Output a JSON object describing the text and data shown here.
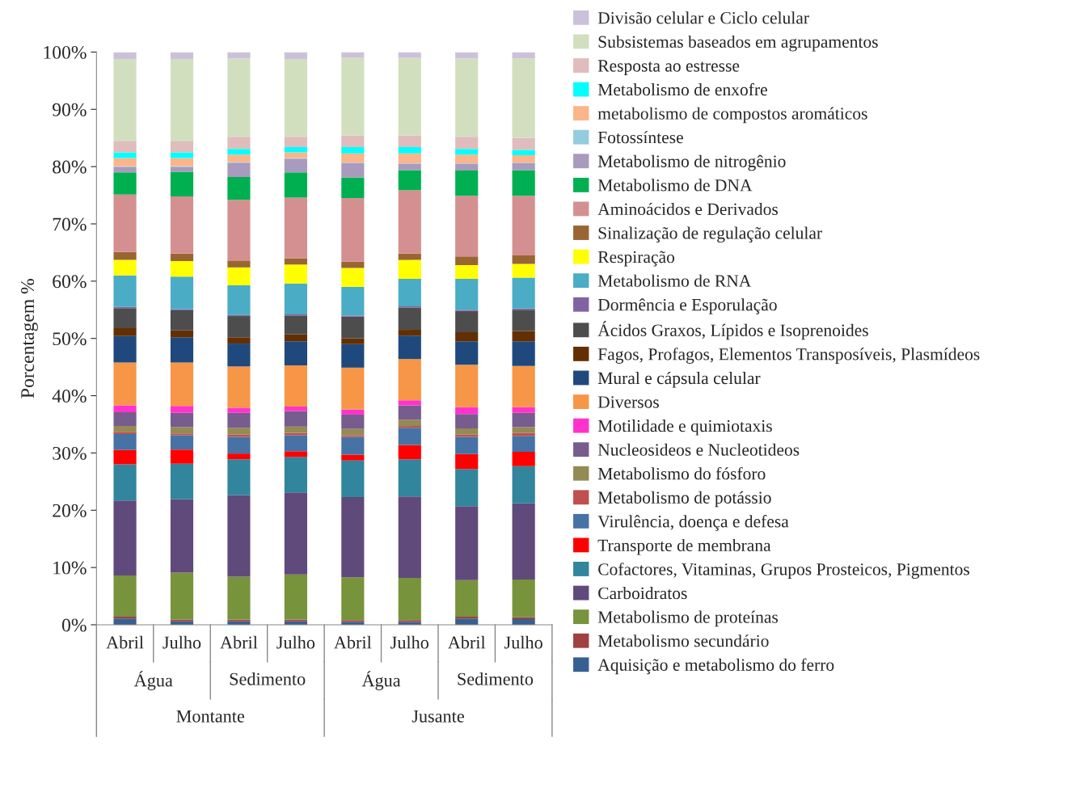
{
  "chart_data": {
    "type": "bar",
    "stacked": true,
    "ylabel": "Porcentagem %",
    "categories": [
      "Abril",
      "Julho",
      "Abril",
      "Julho",
      "Abril",
      "Julho",
      "Abril",
      "Julho"
    ],
    "annotations": [
      "Água",
      "Sedimento",
      "Água",
      "Sedimento",
      "Montante",
      "Jusante"
    ],
    "ylim": [
      0,
      100
    ],
    "yticks": [
      {
        "value": 0,
        "label": "0%"
      },
      {
        "value": 10,
        "label": "10%"
      },
      {
        "value": 20,
        "label": "20%"
      },
      {
        "value": 30,
        "label": "30%"
      },
      {
        "value": 40,
        "label": "40%"
      },
      {
        "value": 50,
        "label": "50%"
      },
      {
        "value": 60,
        "label": "60%"
      },
      {
        "value": 70,
        "label": "70%"
      },
      {
        "value": 80,
        "label": "80%"
      },
      {
        "value": 90,
        "label": "90%"
      },
      {
        "value": 100,
        "label": "100%"
      }
    ],
    "grid": false,
    "legend": "right",
    "series": [
      {
        "name": "Aquisição e metabolismo do ferro",
        "color": "#376092",
        "values": [
          1.1,
          0.6,
          0.6,
          0.6,
          0.5,
          0.5,
          1.1,
          1.0
        ]
      },
      {
        "name": "Metabolismo secundário",
        "color": "#a04040",
        "values": [
          0.3,
          0.3,
          0.3,
          0.3,
          0.3,
          0.3,
          0.3,
          0.3
        ]
      },
      {
        "name": "Metabolismo de proteínas",
        "color": "#77933c",
        "values": [
          7.2,
          8.2,
          7.5,
          7.9,
          7.5,
          7.4,
          6.4,
          6.6
        ]
      },
      {
        "name": "Carboidratos",
        "color": "#604a7b",
        "values": [
          13.1,
          12.8,
          14.2,
          14.3,
          14.0,
          14.2,
          12.9,
          13.3
        ]
      },
      {
        "name": "Cofactores, Vitaminas, Grupos Prosteicos, Pigmentos",
        "color": "#31859c",
        "values": [
          6.3,
          6.2,
          6.3,
          6.2,
          6.4,
          6.5,
          6.5,
          6.5
        ]
      },
      {
        "name": "Transporte de membrana",
        "color": "#ff0000",
        "values": [
          2.5,
          2.5,
          1.0,
          1.0,
          1.0,
          2.5,
          2.6,
          2.5
        ]
      },
      {
        "name": "Virulência, doença e defesa",
        "color": "#4672a6",
        "values": [
          2.8,
          2.5,
          2.9,
          2.8,
          3.1,
          3.0,
          3.0,
          2.8
        ]
      },
      {
        "name": "Metabolismo de potássio",
        "color": "#c0504d",
        "values": [
          0.4,
          0.3,
          0.4,
          0.4,
          0.3,
          0.3,
          0.4,
          0.5
        ]
      },
      {
        "name": "Metabolismo do fósforo",
        "color": "#948a54",
        "values": [
          1.0,
          1.1,
          1.2,
          1.1,
          1.1,
          1.1,
          1.1,
          1.0
        ]
      },
      {
        "name": "Nucleosideos e Nucleotideos",
        "color": "#775c8e",
        "values": [
          2.4,
          2.5,
          2.6,
          2.7,
          2.5,
          2.5,
          2.5,
          2.5
        ]
      },
      {
        "name": "Motilidade e quimiotaxis",
        "color": "#ff33cc",
        "values": [
          1.2,
          1.2,
          0.9,
          0.8,
          0.9,
          0.9,
          1.2,
          1.0
        ]
      },
      {
        "name": "Diversos",
        "color": "#f79646",
        "values": [
          7.5,
          7.6,
          7.2,
          7.2,
          7.3,
          7.2,
          7.4,
          7.2
        ]
      },
      {
        "name": "Mural e cápsula celular",
        "color": "#1f497d",
        "values": [
          4.6,
          4.4,
          4.0,
          4.2,
          4.1,
          4.1,
          4.1,
          4.3
        ]
      },
      {
        "name": "Fagos, Profagos, Elementos Transposíveis, Plasmídeos",
        "color": "#632f00",
        "values": [
          1.4,
          1.2,
          1.1,
          1.2,
          1.0,
          1.0,
          1.6,
          1.8
        ]
      },
      {
        "name": "Ácidos Graxos, Lípidos e Isoprenoides",
        "color": "#4d4d4d",
        "values": [
          3.5,
          3.5,
          3.7,
          3.3,
          3.8,
          3.9,
          3.7,
          3.7
        ]
      },
      {
        "name": "Dormência e Esporulação",
        "color": "#8064a2",
        "values": [
          0.2,
          0.2,
          0.2,
          0.2,
          0.2,
          0.2,
          0.2,
          0.2
        ]
      },
      {
        "name": "Metabolismo de RNA",
        "color": "#4bacc6",
        "values": [
          5.5,
          5.7,
          5.2,
          5.4,
          5.0,
          4.8,
          5.4,
          5.4
        ]
      },
      {
        "name": "Respiração",
        "color": "#ffff00",
        "values": [
          2.7,
          2.7,
          3.1,
          3.3,
          3.3,
          3.3,
          2.4,
          2.4
        ]
      },
      {
        "name": "Sinalização de regulação celular",
        "color": "#996633",
        "values": [
          1.4,
          1.3,
          1.2,
          1.1,
          1.1,
          1.1,
          1.5,
          1.5
        ]
      },
      {
        "name": "Aminoácidos e Derivados",
        "color": "#d49090",
        "values": [
          10.0,
          10.0,
          10.6,
          10.6,
          11.1,
          11.1,
          10.6,
          10.4
        ]
      },
      {
        "name": "Metabolismo de DNA",
        "color": "#00b050",
        "values": [
          3.9,
          4.3,
          4.0,
          4.4,
          3.6,
          3.5,
          4.4,
          4.5
        ]
      },
      {
        "name": "Metabolismo de nitrogênio",
        "color": "#a99bbd",
        "values": [
          1.0,
          0.9,
          2.5,
          2.4,
          2.5,
          1.1,
          1.2,
          1.2
        ]
      },
      {
        "name": "Fotossíntese",
        "color": "#93cddd",
        "values": [
          0.1,
          0.1,
          0.1,
          0.1,
          0.1,
          0.1,
          0.1,
          0.1
        ]
      },
      {
        "name": "metabolismo de compostos aromáticos",
        "color": "#fab58a",
        "values": [
          1.4,
          1.4,
          1.3,
          1.0,
          1.6,
          1.7,
          1.5,
          1.3
        ]
      },
      {
        "name": "Metabolismo de enxofre",
        "color": "#00ffff",
        "values": [
          1.0,
          1.0,
          1.0,
          0.9,
          1.1,
          1.1,
          1.0,
          0.9
        ]
      },
      {
        "name": "Resposta ao estresse",
        "color": "#e0bcbc",
        "values": [
          2.0,
          1.9,
          2.1,
          1.8,
          2.0,
          2.0,
          2.1,
          2.1
        ]
      },
      {
        "name": "Subsistemas baseados em agrupamentos",
        "color": "#d2dfbf",
        "values": [
          14.3,
          14.4,
          13.7,
          13.6,
          13.6,
          13.6,
          13.7,
          13.9
        ]
      },
      {
        "name": "Divisão celular e Ciclo celular",
        "color": "#ccc1da",
        "values": [
          1.2,
          1.2,
          1.1,
          1.2,
          1.0,
          1.0,
          1.1,
          1.1
        ]
      }
    ]
  }
}
